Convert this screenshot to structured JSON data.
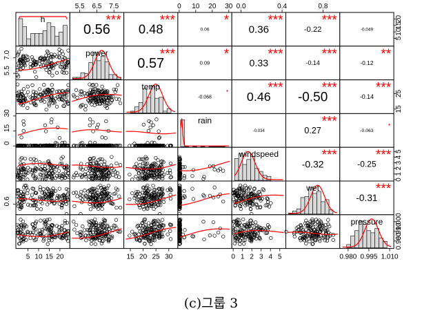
{
  "caption": "(c)그룹 3",
  "chart_data": {
    "type": "scatter",
    "subtype": "correlation-pairs-matrix",
    "variables": [
      "h",
      "power",
      "temp",
      "rain",
      "windspeed",
      "wet",
      "pressure"
    ],
    "diagonal_labels": [
      "h",
      "power",
      "temp",
      "rain",
      "windspeed",
      "wet",
      "pressure"
    ],
    "ranges": [
      [
        0,
        24
      ],
      [
        5,
        8
      ],
      [
        13,
        33
      ],
      [
        0,
        31
      ],
      [
        0,
        5.5
      ],
      [
        0.45,
        0.95
      ],
      [
        0.975,
        1.012
      ]
    ],
    "axis_ticks": {
      "top": [
        {
          "col": 1,
          "labels": [
            "5.5",
            "6.5",
            "7.5"
          ],
          "values": [
            5.5,
            6.5,
            7.5
          ]
        },
        {
          "col": 3,
          "labels": [
            "0",
            "10",
            "20",
            "30"
          ],
          "values": [
            0,
            10,
            20,
            30
          ]
        },
        {
          "col": 5,
          "labels": [
            "0.0",
            "0.4",
            "0.8"
          ],
          "values": [
            0.0,
            0.4,
            0.8
          ]
        }
      ],
      "bottom": [
        {
          "col": 0,
          "labels": [
            "5",
            "10",
            "15",
            "20"
          ],
          "values": [
            5,
            10,
            15,
            20
          ]
        },
        {
          "col": 2,
          "labels": [
            "15",
            "20",
            "25",
            "30"
          ],
          "values": [
            15,
            20,
            25,
            30
          ]
        },
        {
          "col": 4,
          "labels": [
            "0",
            "1",
            "2",
            "3",
            "4",
            "5"
          ],
          "values": [
            0,
            1,
            2,
            3,
            4,
            5
          ]
        },
        {
          "col": 6,
          "labels": [
            "0.980",
            "0.995",
            "1.010"
          ],
          "values": [
            0.98,
            0.995,
            1.01
          ]
        }
      ],
      "left": [
        {
          "row": 1,
          "labels": [
            "5.5",
            "7.0"
          ],
          "values": [
            5.5,
            7.0
          ]
        },
        {
          "row": 3,
          "labels": [
            "0",
            "15",
            "30"
          ],
          "values": [
            0,
            15,
            30
          ]
        },
        {
          "row": 5,
          "labels": [
            "0.6"
          ],
          "values": [
            0.6
          ]
        }
      ],
      "right": [
        {
          "row": 0,
          "labels": [
            "5",
            "10",
            "15",
            "20"
          ],
          "values": [
            5,
            10,
            15,
            20
          ]
        },
        {
          "row": 2,
          "labels": [
            "15",
            "25"
          ],
          "values": [
            15,
            25
          ]
        },
        {
          "row": 4,
          "labels": [
            "0",
            "1",
            "2",
            "3",
            "4",
            "5"
          ],
          "values": [
            0,
            1,
            2,
            3,
            4,
            5
          ]
        },
        {
          "row": 6,
          "labels": [
            "1.000",
            "0.990",
            "0.980"
          ],
          "values": [
            1.0,
            0.99,
            0.98
          ]
        }
      ]
    },
    "correlations": [
      {
        "row": 0,
        "col": 1,
        "label": "0.56",
        "stars": "***"
      },
      {
        "row": 0,
        "col": 2,
        "label": "0.48",
        "stars": "***"
      },
      {
        "row": 0,
        "col": 3,
        "label": "0.06",
        "stars": "*"
      },
      {
        "row": 0,
        "col": 4,
        "label": "0.36",
        "stars": "***"
      },
      {
        "row": 0,
        "col": 5,
        "label": "-0.22",
        "stars": "***"
      },
      {
        "row": 0,
        "col": 6,
        "label": "-0.049",
        "stars": ""
      },
      {
        "row": 1,
        "col": 2,
        "label": "0.57",
        "stars": "***"
      },
      {
        "row": 1,
        "col": 3,
        "label": "0.09",
        "stars": "*"
      },
      {
        "row": 1,
        "col": 4,
        "label": "0.33",
        "stars": "***"
      },
      {
        "row": 1,
        "col": 5,
        "label": "-0.14",
        "stars": "***"
      },
      {
        "row": 1,
        "col": 6,
        "label": "-0.12",
        "stars": "**"
      },
      {
        "row": 2,
        "col": 3,
        "label": "-0.068",
        "stars": "."
      },
      {
        "row": 2,
        "col": 4,
        "label": "0.46",
        "stars": "***"
      },
      {
        "row": 2,
        "col": 5,
        "label": "-0.50",
        "stars": "***"
      },
      {
        "row": 2,
        "col": 6,
        "label": "-0.14",
        "stars": "***"
      },
      {
        "row": 3,
        "col": 4,
        "label": "-0.034",
        "stars": ""
      },
      {
        "row": 3,
        "col": 5,
        "label": "0.27",
        "stars": "***"
      },
      {
        "row": 3,
        "col": 6,
        "label": "-0.063",
        "stars": "."
      },
      {
        "row": 4,
        "col": 5,
        "label": "-0.32",
        "stars": "***"
      },
      {
        "row": 4,
        "col": 6,
        "label": "-0.25",
        "stars": "***"
      },
      {
        "row": 5,
        "col": 6,
        "label": "-0.31",
        "stars": "***"
      }
    ],
    "colors": {
      "stars": "#ff0000",
      "fit_line": "#ff0000",
      "density": "#ff0000",
      "histogram_fill": "#d9d9d9",
      "points": "#000000"
    }
  }
}
